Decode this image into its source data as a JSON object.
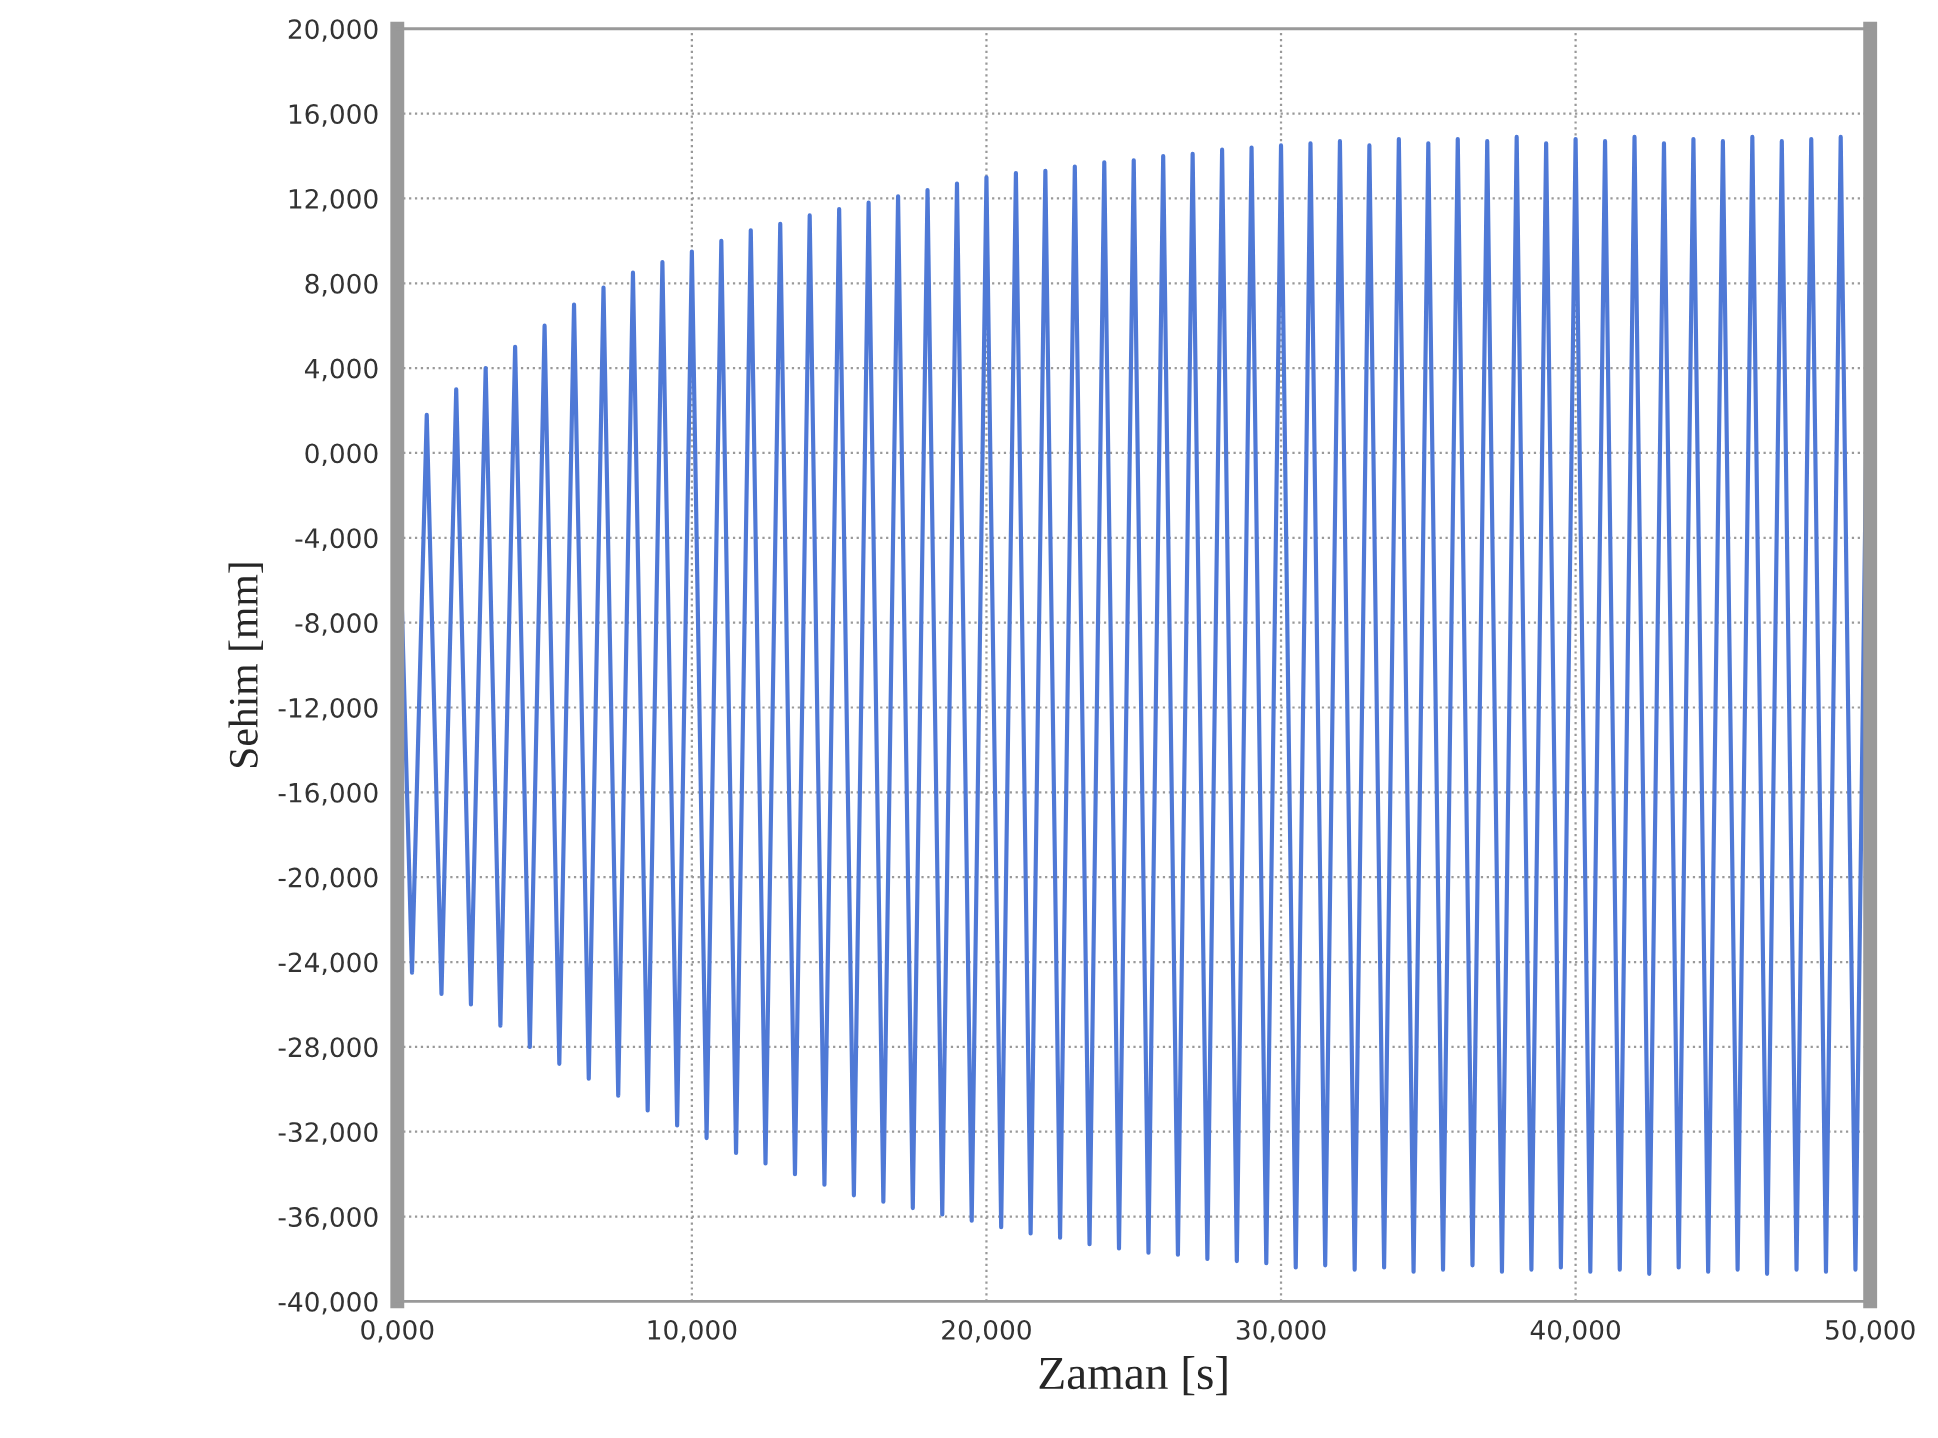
{
  "chart_data": {
    "type": "line",
    "xlabel": "Zaman [s]",
    "ylabel": "Sehim [mm]",
    "grid": true,
    "marker": "none",
    "line_style": "solid",
    "xlim": [
      0,
      50
    ],
    "ylim": [
      -40,
      20
    ],
    "xticks": [
      {
        "value": 0,
        "label": "0,000"
      },
      {
        "value": 10,
        "label": "10,000"
      },
      {
        "value": 20,
        "label": "20,000"
      },
      {
        "value": 30,
        "label": "30,000"
      },
      {
        "value": 40,
        "label": "40,000"
      },
      {
        "value": 50,
        "label": "50,000"
      }
    ],
    "yticks": [
      {
        "value": -40,
        "label": "-40,000"
      },
      {
        "value": -36,
        "label": "-36,000"
      },
      {
        "value": -32,
        "label": "-32,000"
      },
      {
        "value": -28,
        "label": "-28,000"
      },
      {
        "value": -24,
        "label": "-24,000"
      },
      {
        "value": -20,
        "label": "-20,000"
      },
      {
        "value": -16,
        "label": "-16,000"
      },
      {
        "value": -12,
        "label": "-12,000"
      },
      {
        "value": -8,
        "label": "-8,000"
      },
      {
        "value": -4,
        "label": "-4,000"
      },
      {
        "value": 0,
        "label": "0,000"
      },
      {
        "value": 4,
        "label": "4,000"
      },
      {
        "value": 8,
        "label": "8,000"
      },
      {
        "value": 12,
        "label": "12,000"
      },
      {
        "value": 16,
        "label": "16,000"
      },
      {
        "value": 20,
        "label": "20,000"
      }
    ],
    "series": [
      {
        "color": "#4f79d6",
        "x": [
          0,
          0.5,
          1,
          1.5,
          2,
          2.5,
          3,
          3.5,
          4,
          4.5,
          5,
          5.5,
          6,
          6.5,
          7,
          7.5,
          8,
          8.5,
          9,
          9.5,
          10,
          10.5,
          11,
          11.5,
          12,
          12.5,
          13,
          13.5,
          14,
          14.5,
          15,
          15.5,
          16,
          16.5,
          17,
          17.5,
          18,
          18.5,
          19,
          19.5,
          20,
          20.5,
          21,
          21.5,
          22,
          22.5,
          23,
          23.5,
          24,
          24.5,
          25,
          25.5,
          26,
          26.5,
          27,
          27.5,
          28,
          28.5,
          29,
          29.5,
          30,
          30.5,
          31,
          31.5,
          32,
          32.5,
          33,
          33.5,
          34,
          34.5,
          35,
          35.5,
          36,
          36.5,
          37,
          37.5,
          38,
          38.5,
          39,
          39.5,
          40,
          40.5,
          41,
          41.5,
          42,
          42.5,
          43,
          43.5,
          44,
          44.5,
          45,
          45.5,
          46,
          46.5,
          47,
          47.5,
          48,
          48.5,
          49,
          49.5,
          50
        ],
        "values": [
          0.5,
          -24.5,
          1.8,
          -25.5,
          3,
          -26,
          4,
          -27,
          5,
          -28,
          6,
          -28.8,
          7,
          -29.5,
          7.8,
          -30.3,
          8.5,
          -31,
          9,
          -31.7,
          9.5,
          -32.3,
          10,
          -33,
          10.5,
          -33.5,
          10.8,
          -34,
          11.2,
          -34.5,
          11.5,
          -35,
          11.8,
          -35.3,
          12.1,
          -35.6,
          12.4,
          -35.9,
          12.7,
          -36.2,
          13,
          -36.5,
          13.2,
          -36.8,
          13.3,
          -37,
          13.5,
          -37.3,
          13.7,
          -37.5,
          13.8,
          -37.7,
          14,
          -37.8,
          14.1,
          -38,
          14.3,
          -38.1,
          14.4,
          -38.2,
          14.5,
          -38.4,
          14.6,
          -38.3,
          14.7,
          -38.5,
          14.5,
          -38.4,
          14.8,
          -38.6,
          14.6,
          -38.5,
          14.8,
          -38.3,
          14.7,
          -38.6,
          14.9,
          -38.5,
          14.6,
          -38.4,
          14.8,
          -38.6,
          14.7,
          -38.5,
          14.9,
          -38.7,
          14.6,
          -38.4,
          14.8,
          -38.6,
          14.7,
          -38.5,
          14.9,
          -38.7,
          14.7,
          -38.5,
          14.8,
          -38.6,
          14.9,
          -38.5,
          14.8
        ]
      }
    ]
  }
}
